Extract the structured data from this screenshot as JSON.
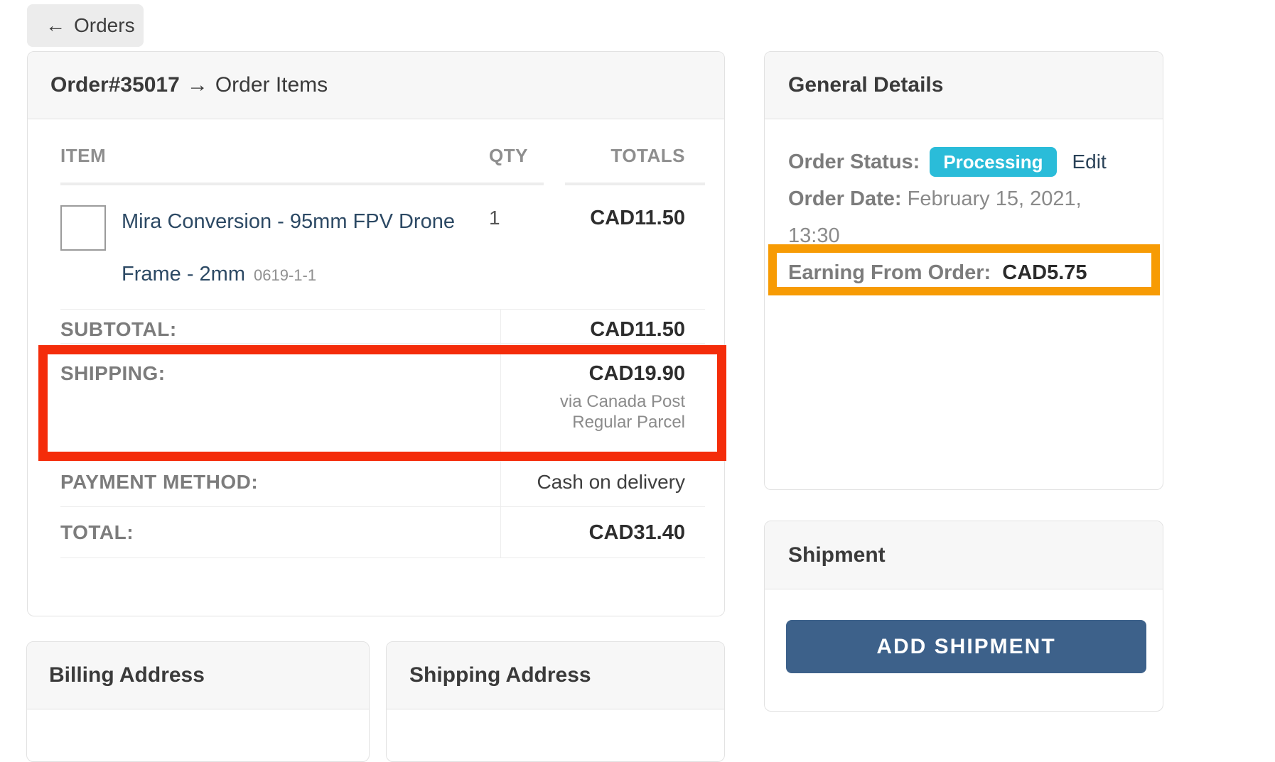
{
  "back_button": {
    "arrow": "←",
    "label": "Orders"
  },
  "order_card": {
    "order_id": "Order#35017",
    "arrow": "→",
    "section": "Order Items",
    "columns": {
      "item": "ITEM",
      "qty": "QTY",
      "totals": "TOTALS"
    },
    "item": {
      "name": "Mira Conversion - 95mm FPV Drone Frame - 2mm",
      "sku": "0619-1-1",
      "qty": "1",
      "total": "CAD11.50"
    },
    "summary": [
      {
        "label": "SUBTOTAL:",
        "value": "CAD11.50"
      },
      {
        "label": "SHIPPING:",
        "value": "CAD19.90",
        "note": "via Canada Post Regular Parcel"
      },
      {
        "label": "PAYMENT METHOD:",
        "value": "Cash on delivery"
      },
      {
        "label": "TOTAL:",
        "value": "CAD31.40"
      }
    ]
  },
  "general_details": {
    "title": "General Details",
    "status_label": "Order Status:",
    "status_value": "Processing",
    "edit_link": "Edit",
    "date_label": "Order Date:",
    "date_value": "February 15, 2021, 13:30",
    "earning_label": "Earning From Order:",
    "earning_value": "CAD5.75"
  },
  "shipment": {
    "title": "Shipment",
    "add_button": "ADD SHIPMENT"
  },
  "billing": {
    "title": "Billing Address"
  },
  "shipping": {
    "title": "Shipping Address"
  },
  "colors": {
    "status_badge_bg": "#2abcd9",
    "add_shipment_bg": "#3d618a",
    "shipping_annotation": "#f42c0a",
    "earning_annotation": "#f79b04",
    "product_link": "#2c4964",
    "card_header_bg": "#f7f7f7"
  }
}
